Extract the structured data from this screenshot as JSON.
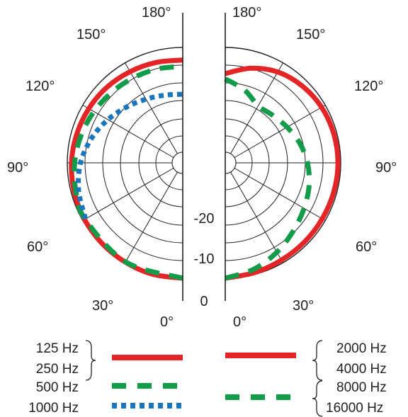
{
  "chart_data": {
    "type": "polar",
    "radial_axis": {
      "ticks": [
        "-20",
        "-10",
        "0"
      ],
      "range_db": [
        -30,
        0
      ]
    },
    "angle_labels": [
      "0°",
      "30°",
      "60°",
      "90°",
      "120°",
      "150°",
      "180°"
    ],
    "grid": true,
    "panels": [
      {
        "side": "left",
        "series": [
          {
            "name": "125 Hz / 250 Hz",
            "color": "#e42527",
            "style": "solid",
            "points": [
              [
                0,
                0
              ],
              [
                15,
                0
              ],
              [
                30,
                -0.2
              ],
              [
                45,
                -0.4
              ],
              [
                60,
                -0.6
              ],
              [
                75,
                -0.9
              ],
              [
                90,
                -1.2
              ],
              [
                105,
                -1.6
              ],
              [
                120,
                -2.0
              ],
              [
                135,
                -2.4
              ],
              [
                150,
                -2.9
              ],
              [
                165,
                -3.3
              ],
              [
                180,
                -3.6
              ]
            ]
          },
          {
            "name": "500 Hz",
            "color": "#129b48",
            "style": "dashed",
            "points": [
              [
                0,
                0
              ],
              [
                30,
                -0.3
              ],
              [
                60,
                -0.8
              ],
              [
                75,
                -1.4
              ],
              [
                90,
                -2.1
              ],
              [
                105,
                -2.9
              ],
              [
                120,
                -3.7
              ],
              [
                135,
                -4.4
              ],
              [
                150,
                -4.9
              ],
              [
                165,
                -5.2
              ],
              [
                180,
                -5.4
              ]
            ]
          },
          {
            "name": "1000 Hz",
            "color": "#1a76bc",
            "style": "dotted",
            "points": [
              [
                60,
                -0.9
              ],
              [
                75,
                -2.2
              ],
              [
                90,
                -3.8
              ],
              [
                105,
                -6.0
              ],
              [
                120,
                -8.3
              ],
              [
                135,
                -10.4
              ],
              [
                150,
                -12.0
              ],
              [
                165,
                -13.0
              ],
              [
                180,
                -13.4
              ]
            ]
          }
        ]
      },
      {
        "side": "right",
        "series": [
          {
            "name": "2000 Hz / 4000 Hz",
            "color": "#e42527",
            "style": "solid",
            "points": [
              [
                0,
                0
              ],
              [
                15,
                -0.5
              ],
              [
                30,
                -0.9
              ],
              [
                45,
                -1.0
              ],
              [
                60,
                -1.0
              ],
              [
                75,
                -0.9
              ],
              [
                90,
                -0.8
              ],
              [
                105,
                -0.9
              ],
              [
                120,
                -1.2
              ],
              [
                135,
                -1.9
              ],
              [
                150,
                -3.0
              ],
              [
                165,
                -5.0
              ],
              [
                180,
                -7.5
              ]
            ]
          },
          {
            "name": "8000 Hz / 16000 Hz",
            "color": "#129b48",
            "style": "dashed",
            "points": [
              [
                0,
                0
              ],
              [
                15,
                -1.5
              ],
              [
                30,
                -3.5
              ],
              [
                45,
                -5.5
              ],
              [
                60,
                -7.0
              ],
              [
                75,
                -8.2
              ],
              [
                90,
                -9.5
              ],
              [
                105,
                -11.0
              ],
              [
                120,
                -12.6
              ],
              [
                135,
                -13.8
              ],
              [
                150,
                -14.2
              ],
              [
                165,
                -11.5
              ],
              [
                180,
                -9.0
              ]
            ]
          }
        ]
      }
    ]
  },
  "legend": {
    "left_group_1": [
      "125 Hz",
      "250 Hz"
    ],
    "left_item_500": "500 Hz",
    "left_item_1000": "1000 Hz",
    "right_group_1": [
      "2000 Hz",
      "4000 Hz"
    ],
    "right_group_2": [
      "8000 Hz",
      "16000 Hz"
    ]
  }
}
